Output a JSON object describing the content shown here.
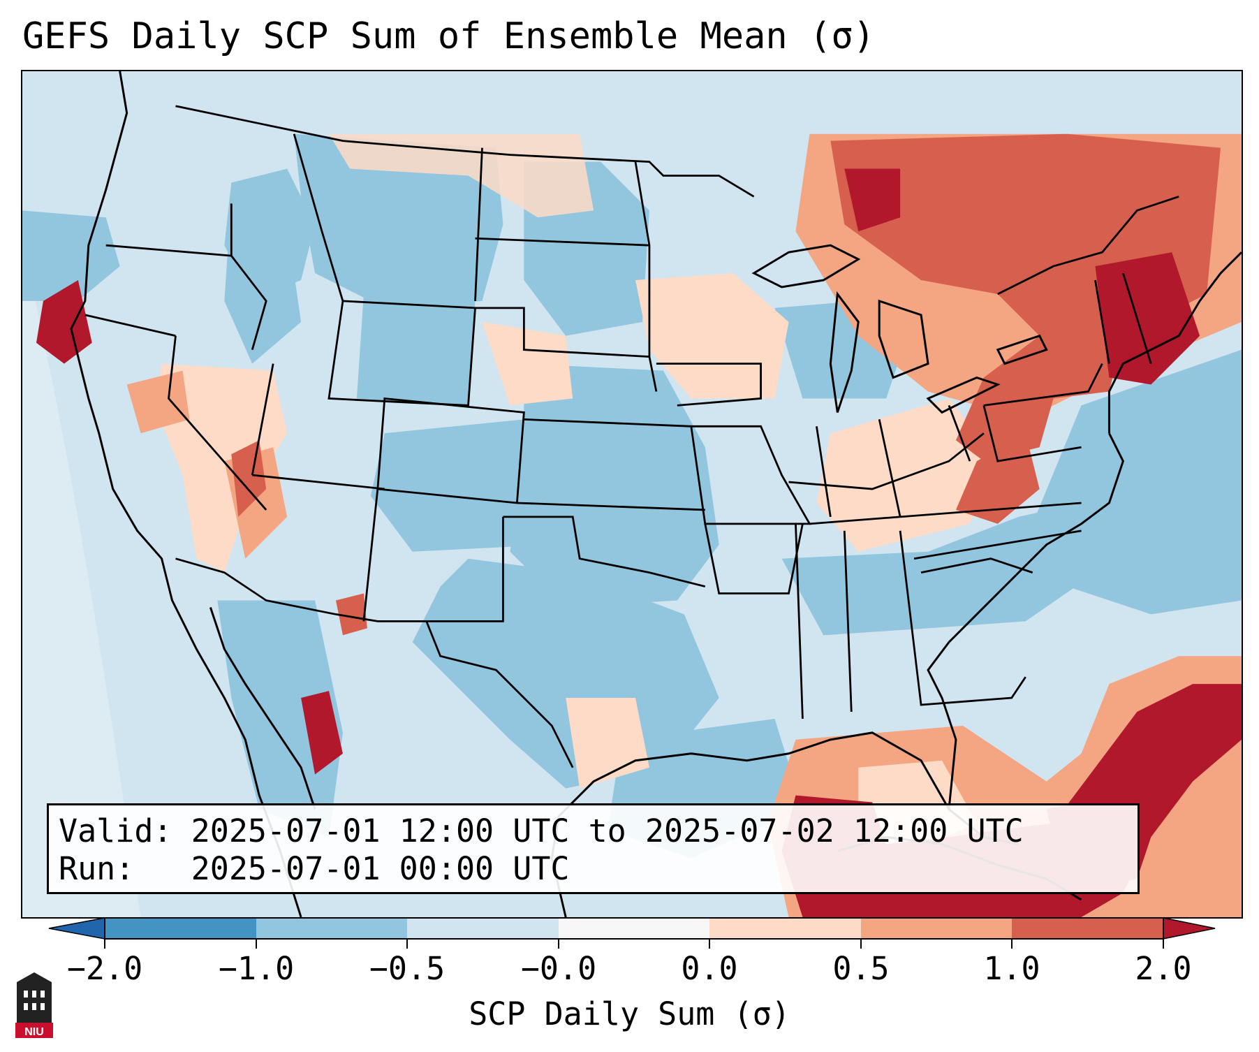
{
  "map": {
    "title": "GEFS Daily SCP Sum of Ensemble Mean (σ)",
    "info": {
      "valid_label": "Valid:",
      "valid_text": "2025-07-01 12:00 UTC to 2025-07-02 12:00 UTC",
      "run_label": "Run:",
      "run_text": "2025-07-01 00:00 UTC"
    },
    "colorbar": {
      "label": "SCP Daily Sum (σ)",
      "ticks": [
        "−2.0",
        "−1.0",
        "−0.5",
        "−0.0",
        "0.0",
        "0.5",
        "1.0",
        "2.0"
      ],
      "colors": [
        "#4393c3",
        "#92c5de",
        "#d1e5f0",
        "#f7f7f7",
        "#fddbc7",
        "#f4a582",
        "#d6604d",
        "#b2182b"
      ],
      "under_color": "#2166ac",
      "over_color": "#67001f"
    },
    "logo_text": "NIU"
  }
}
